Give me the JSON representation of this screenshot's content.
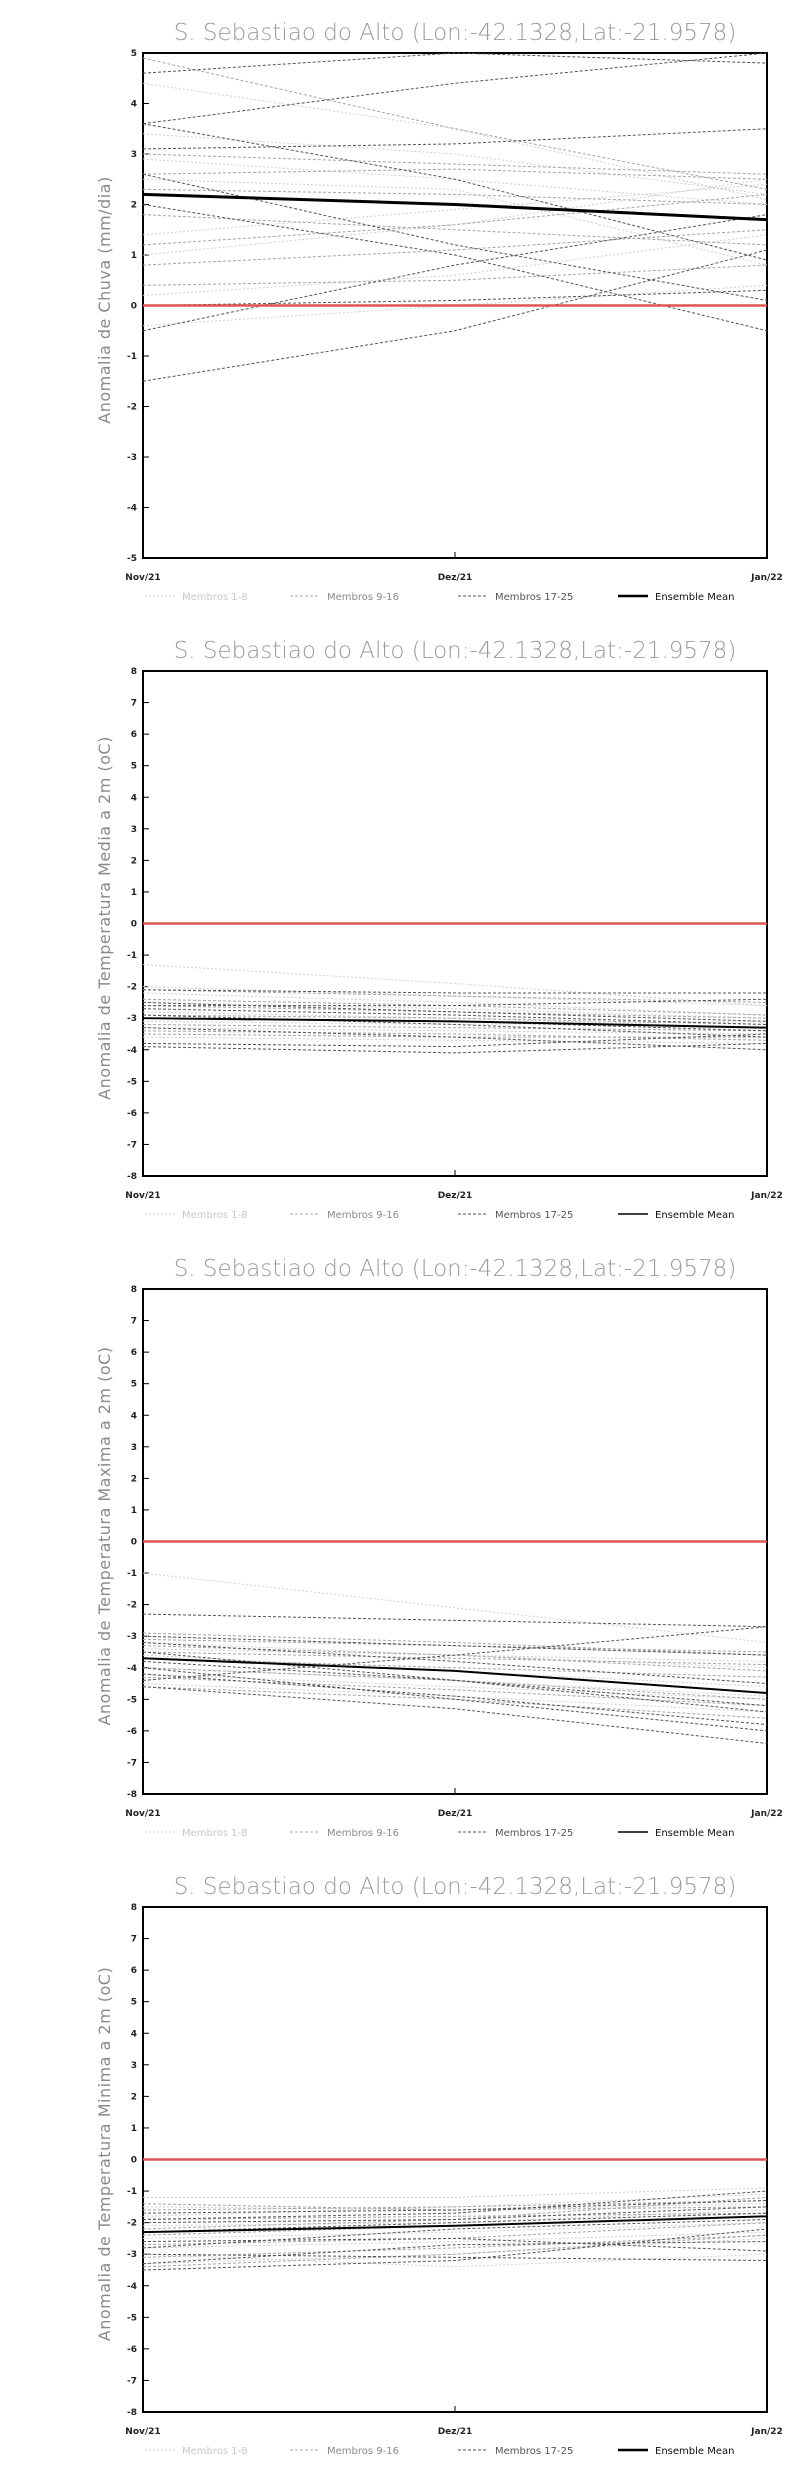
{
  "chart_data": [
    {
      "type": "line",
      "title": "S. Sebastiao do Alto (Lon:-42.1328,Lat:-21.9578)",
      "ylabel": "Anomalia de Chuva (mm/dia)",
      "xlabel": "",
      "categories": [
        "Nov/21",
        "Dez/21",
        "Jan/22"
      ],
      "ylim": [
        -5,
        5
      ],
      "yticks": [
        -5,
        -4,
        -3,
        -2,
        -1,
        0,
        1,
        2,
        3,
        4,
        5
      ],
      "zero_line_color": "#e05555",
      "series": [
        {
          "name": "Membros 1-8",
          "group": 1,
          "values": [
            [
              2.9,
              2.5,
              2.0
            ],
            [
              1.4,
              1.9,
              2.4
            ],
            [
              3.4,
              3.0,
              2.2
            ],
            [
              -0.4,
              0.0,
              0.4
            ],
            [
              1.0,
              1.6,
              2.5
            ],
            [
              4.4,
              3.5,
              2.1
            ],
            [
              0.2,
              0.6,
              1.4
            ],
            [
              2.5,
              2.3,
              0.8
            ]
          ]
        },
        {
          "name": "Membros 9-16",
          "group": 2,
          "values": [
            [
              3.0,
              2.8,
              2.6
            ],
            [
              1.8,
              1.5,
              1.2
            ],
            [
              0.8,
              1.1,
              1.5
            ],
            [
              2.6,
              2.7,
              2.5
            ],
            [
              4.9,
              3.5,
              2.3
            ],
            [
              0.4,
              0.5,
              0.8
            ],
            [
              2.3,
              2.2,
              2.0
            ],
            [
              1.2,
              1.6,
              2.2
            ]
          ]
        },
        {
          "name": "Membros 17-25",
          "group": 3,
          "values": [
            [
              4.6,
              5.0,
              4.8
            ],
            [
              3.6,
              4.4,
              5.0
            ],
            [
              3.6,
              2.5,
              0.9
            ],
            [
              2.6,
              1.2,
              0.1
            ],
            [
              2.0,
              1.0,
              -0.5
            ],
            [
              -1.5,
              -0.5,
              1.1
            ],
            [
              3.1,
              3.2,
              3.5
            ],
            [
              0.0,
              0.1,
              0.3
            ],
            [
              -0.5,
              0.8,
              1.8
            ]
          ]
        },
        {
          "name": "Ensemble Mean",
          "group": 4,
          "values": [
            [
              2.2,
              2.0,
              1.7
            ]
          ]
        }
      ]
    },
    {
      "type": "line",
      "title": "S. Sebastiao do Alto (Lon:-42.1328,Lat:-21.9578)",
      "ylabel": "Anomalia de Temperatura Media a 2m (oC)",
      "xlabel": "",
      "categories": [
        "Nov/21",
        "Dez/21",
        "Jan/22"
      ],
      "ylim": [
        -8,
        8
      ],
      "yticks": [
        -8,
        -7,
        -6,
        -5,
        -4,
        -3,
        -2,
        -1,
        0,
        1,
        2,
        3,
        4,
        5,
        6,
        7,
        8
      ],
      "zero_line_color": "#e05555",
      "series": [
        {
          "name": "Membros 1-8",
          "group": 1,
          "values": [
            [
              -1.3,
              -1.9,
              -2.6
            ],
            [
              -2.0,
              -2.3,
              -2.6
            ],
            [
              -2.5,
              -2.7,
              -3.0
            ],
            [
              -3.1,
              -3.2,
              -3.1
            ],
            [
              -2.8,
              -3.0,
              -3.3
            ],
            [
              -3.3,
              -3.4,
              -3.5
            ],
            [
              -2.2,
              -2.5,
              -2.9
            ],
            [
              -3.6,
              -3.7,
              -3.8
            ]
          ]
        },
        {
          "name": "Membros 9-16",
          "group": 2,
          "values": [
            [
              -2.1,
              -2.3,
              -2.5
            ],
            [
              -2.6,
              -2.8,
              -3.0
            ],
            [
              -3.0,
              -3.1,
              -3.3
            ],
            [
              -3.4,
              -3.5,
              -3.7
            ],
            [
              -2.4,
              -2.6,
              -2.9
            ],
            [
              -3.2,
              -3.3,
              -3.4
            ],
            [
              -2.9,
              -3.0,
              -3.2
            ],
            [
              -3.5,
              -3.6,
              -3.6
            ]
          ]
        },
        {
          "name": "Membros 17-25",
          "group": 3,
          "values": [
            [
              -2.1,
              -2.2,
              -2.2
            ],
            [
              -2.7,
              -2.9,
              -3.2
            ],
            [
              -3.8,
              -3.9,
              -3.5
            ],
            [
              -3.0,
              -3.1,
              -3.4
            ],
            [
              -2.5,
              -2.8,
              -3.1
            ],
            [
              -3.3,
              -3.6,
              -4.0
            ],
            [
              -2.9,
              -3.2,
              -3.6
            ],
            [
              -3.9,
              -4.1,
              -3.8
            ],
            [
              -2.6,
              -2.6,
              -2.4
            ]
          ]
        },
        {
          "name": "Ensemble Mean",
          "group": 4,
          "values": [
            [
              -3.0,
              -3.1,
              -3.3
            ]
          ]
        }
      ]
    },
    {
      "type": "line",
      "title": "S. Sebastiao do Alto (Lon:-42.1328,Lat:-21.9578)",
      "ylabel": "Anomalia de Temperatura Maxima a 2m (oC)",
      "xlabel": "",
      "categories": [
        "Nov/21",
        "Dez/21",
        "Jan/22"
      ],
      "ylim": [
        -8,
        8
      ],
      "yticks": [
        -8,
        -7,
        -6,
        -5,
        -4,
        -3,
        -2,
        -1,
        0,
        1,
        2,
        3,
        4,
        5,
        6,
        7,
        8
      ],
      "zero_line_color": "#e05555",
      "series": [
        {
          "name": "Membros 1-8",
          "group": 1,
          "values": [
            [
              -1.0,
              -2.1,
              -3.2
            ],
            [
              -3.0,
              -3.3,
              -3.6
            ],
            [
              -3.6,
              -4.1,
              -4.6
            ],
            [
              -4.2,
              -4.6,
              -5.0
            ],
            [
              -3.2,
              -3.6,
              -4.0
            ],
            [
              -4.5,
              -4.9,
              -5.4
            ],
            [
              -3.4,
              -3.6,
              -3.8
            ],
            [
              -4.0,
              -4.4,
              -4.9
            ]
          ]
        },
        {
          "name": "Membros 9-16",
          "group": 2,
          "values": [
            [
              -3.1,
              -3.3,
              -3.5
            ],
            [
              -3.7,
              -4.0,
              -4.3
            ],
            [
              -4.3,
              -4.7,
              -5.2
            ],
            [
              -2.9,
              -3.2,
              -3.6
            ],
            [
              -4.0,
              -4.4,
              -5.0
            ],
            [
              -3.5,
              -3.7,
              -3.9
            ],
            [
              -4.6,
              -5.0,
              -5.6
            ],
            [
              -3.3,
              -3.6,
              -4.1
            ]
          ]
        },
        {
          "name": "Membros 17-25",
          "group": 3,
          "values": [
            [
              -2.3,
              -2.5,
              -2.7
            ],
            [
              -4.4,
              -3.6,
              -2.7
            ],
            [
              -3.5,
              -4.4,
              -5.4
            ],
            [
              -4.0,
              -5.0,
              -6.0
            ],
            [
              -4.6,
              -5.3,
              -6.4
            ],
            [
              -3.8,
              -4.4,
              -5.2
            ],
            [
              -3.2,
              -3.8,
              -4.5
            ],
            [
              -4.2,
              -4.9,
              -5.8
            ],
            [
              -3.0,
              -3.3,
              -3.6
            ]
          ]
        },
        {
          "name": "Ensemble Mean",
          "group": 4,
          "values": [
            [
              -3.7,
              -4.1,
              -4.8
            ]
          ]
        }
      ]
    },
    {
      "type": "line",
      "title": "S. Sebastiao do Alto (Lon:-42.1328,Lat:-21.9578)",
      "ylabel": "Anomalia de Temperatura Minima a 2m (oC)",
      "xlabel": "",
      "categories": [
        "Nov/21",
        "Dez/21",
        "Jan/22"
      ],
      "ylim": [
        -8,
        8
      ],
      "yticks": [
        -8,
        -7,
        -6,
        -5,
        -4,
        -3,
        -2,
        -1,
        0,
        1,
        2,
        3,
        4,
        5,
        6,
        7,
        8
      ],
      "zero_line_color": "#e05555",
      "series": [
        {
          "name": "Membros 1-8",
          "group": 1,
          "values": [
            [
              -1.2,
              -1.2,
              -0.9
            ],
            [
              -1.8,
              -1.5,
              -1.1
            ],
            [
              -2.1,
              -2.0,
              -1.6
            ],
            [
              -3.0,
              -3.4,
              -3.0
            ],
            [
              -2.5,
              -2.3,
              -2.0
            ],
            [
              -1.5,
              -1.6,
              -1.4
            ],
            [
              -2.8,
              -2.6,
              -2.3
            ],
            [
              -3.3,
              -3.0,
              -2.5
            ]
          ]
        },
        {
          "name": "Membros 9-16",
          "group": 2,
          "values": [
            [
              -1.4,
              -1.6,
              -1.5
            ],
            [
              -1.9,
              -1.8,
              -1.7
            ],
            [
              -2.4,
              -2.1,
              -1.8
            ],
            [
              -2.7,
              -2.5,
              -2.0
            ],
            [
              -3.1,
              -2.8,
              -2.4
            ],
            [
              -2.2,
              -1.9,
              -1.2
            ],
            [
              -1.6,
              -1.5,
              -1.3
            ],
            [
              -3.4,
              -3.0,
              -2.4
            ]
          ]
        },
        {
          "name": "Membros 17-25",
          "group": 3,
          "values": [
            [
              -1.7,
              -1.6,
              -1.3
            ],
            [
              -2.0,
              -1.9,
              -1.5
            ],
            [
              -2.3,
              -2.0,
              -1.7
            ],
            [
              -2.6,
              -2.5,
              -2.9
            ],
            [
              -3.0,
              -3.1,
              -3.2
            ],
            [
              -3.5,
              -3.2,
              -2.2
            ],
            [
              -1.9,
              -1.7,
              -1.0
            ],
            [
              -2.8,
              -2.2,
              -1.9
            ],
            [
              -3.3,
              -2.7,
              -2.6
            ]
          ]
        },
        {
          "name": "Ensemble Mean",
          "group": 4,
          "values": [
            [
              -2.3,
              -2.1,
              -1.8
            ]
          ]
        }
      ]
    }
  ]
}
